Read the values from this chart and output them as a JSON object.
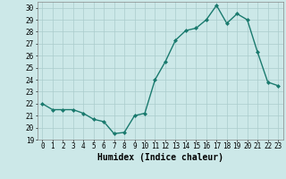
{
  "x": [
    0,
    1,
    2,
    3,
    4,
    5,
    6,
    7,
    8,
    9,
    10,
    11,
    12,
    13,
    14,
    15,
    16,
    17,
    18,
    19,
    20,
    21,
    22,
    23
  ],
  "y": [
    22,
    21.5,
    21.5,
    21.5,
    21.2,
    20.7,
    20.5,
    19.5,
    19.6,
    21.0,
    21.2,
    24.0,
    25.5,
    27.3,
    28.1,
    28.3,
    29.0,
    30.2,
    28.7,
    29.5,
    29.0,
    26.3,
    23.8,
    23.5
  ],
  "line_color": "#1a7a6e",
  "marker": "D",
  "marker_size": 2.0,
  "line_width": 1.0,
  "bg_color": "#cce8e8",
  "grid_color": "#aacccc",
  "xlabel": "Humidex (Indice chaleur)",
  "xlim": [
    -0.5,
    23.5
  ],
  "ylim": [
    19,
    30.5
  ],
  "yticks": [
    19,
    20,
    21,
    22,
    23,
    24,
    25,
    26,
    27,
    28,
    29,
    30
  ],
  "xticks": [
    0,
    1,
    2,
    3,
    4,
    5,
    6,
    7,
    8,
    9,
    10,
    11,
    12,
    13,
    14,
    15,
    16,
    17,
    18,
    19,
    20,
    21,
    22,
    23
  ],
  "tick_fontsize": 5.5,
  "xlabel_fontsize": 7.0
}
